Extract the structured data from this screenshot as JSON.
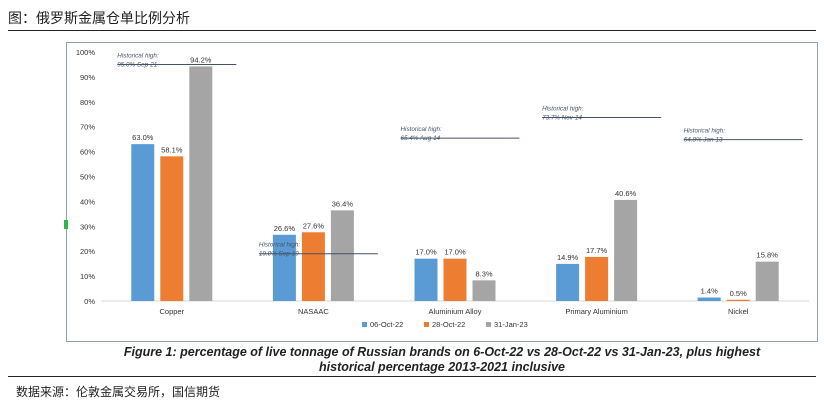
{
  "header": {
    "title": "图：俄罗斯金属仓单比例分析"
  },
  "footer": {
    "source": "数据来源：伦敦金属交易所，国信期货"
  },
  "colors": {
    "s1": "#5b9bd5",
    "s2": "#ed7d31",
    "s3": "#a5a5a5",
    "line": "#44546a",
    "grid": "#d9d9d9"
  },
  "chart_data": {
    "type": "bar",
    "title": "Figure 1: percentage of live tonnage of Russian brands on 6-Oct-22 vs 28-Oct-22 vs 31-Jan-23, plus highest historical percentage 2013-2021 inclusive",
    "title_lines": [
      "Figure 1: percentage of live tonnage of Russian brands on 6-Oct-22 vs 28-Oct-22 vs 31-Jan-23, plus highest",
      "historical percentage 2013-2021 inclusive"
    ],
    "categories": [
      "Copper",
      "NASAAC",
      "Aluminium Alloy",
      "Primary Aluminium",
      "Nickel"
    ],
    "series": [
      {
        "name": "06-Oct-22",
        "values": [
          63.0,
          26.6,
          17.0,
          14.9,
          1.4
        ],
        "labels": [
          "63.0%",
          "26.6%",
          "17.0%",
          "14.9%",
          "1.4%"
        ]
      },
      {
        "name": "28-Oct-22",
        "values": [
          58.1,
          27.6,
          17.0,
          17.7,
          0.5
        ],
        "labels": [
          "58.1%",
          "27.6%",
          "17.0%",
          "17.7%",
          "0.5%"
        ]
      },
      {
        "name": "31-Jan-23",
        "values": [
          94.2,
          36.4,
          8.3,
          40.6,
          15.8
        ],
        "labels": [
          "94.2%",
          "36.4%",
          "8.3%",
          "40.6%",
          "15.8%"
        ]
      }
    ],
    "historical_highs": [
      {
        "category": "Copper",
        "value": 95.0,
        "label1": "Historical high:",
        "label2": "95.0% Sep-21"
      },
      {
        "category": "NASAAC",
        "value": 19.0,
        "label1": "Historical high:",
        "label2": "19.0% Sep-19"
      },
      {
        "category": "Aluminium Alloy",
        "value": 65.4,
        "label1": "Historical high:",
        "label2": "65.4% Aug-14"
      },
      {
        "category": "Primary Aluminium",
        "value": 73.7,
        "label1": "Historical high:",
        "label2": "73.7% Nov-14"
      },
      {
        "category": "Nickel",
        "value": 64.8,
        "label1": "Historical high:",
        "label2": "64.8% Jan-13"
      }
    ],
    "yticks": [
      "0%",
      "10%",
      "20%",
      "30%",
      "40%",
      "50%",
      "60%",
      "70%",
      "80%",
      "90%",
      "100%"
    ],
    "ylim": [
      0,
      100
    ],
    "grid": false,
    "legend_position": "bottom"
  }
}
